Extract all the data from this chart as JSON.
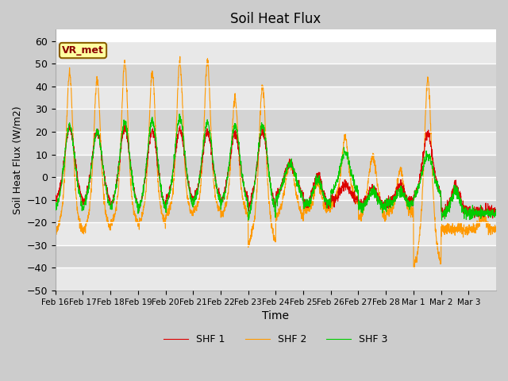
{
  "title": "Soil Heat Flux",
  "xlabel": "Time",
  "ylabel": "Soil Heat Flux (W/m2)",
  "ylim": [
    -50,
    65
  ],
  "yticks": [
    -50,
    -40,
    -30,
    -20,
    -10,
    0,
    10,
    20,
    30,
    40,
    50,
    60
  ],
  "colors": {
    "SHF 1": "#dd0000",
    "SHF 2": "#ff9900",
    "SHF 3": "#00cc00"
  },
  "annotation": "VR_met",
  "background_color": "#e0e0e0",
  "band_colors": [
    "#e8e8e8",
    "#d4d4d4"
  ],
  "n_days": 16,
  "date_labels": [
    "Feb 16",
    "Feb 17",
    "Feb 18",
    "Feb 19",
    "Feb 20",
    "Feb 21",
    "Feb 22",
    "Feb 23",
    "Feb 24",
    "Feb 25",
    "Feb 26",
    "Feb 27",
    "Feb 28",
    "Mar 1",
    "Mar 2",
    "Mar 3"
  ],
  "linewidth": 0.8
}
